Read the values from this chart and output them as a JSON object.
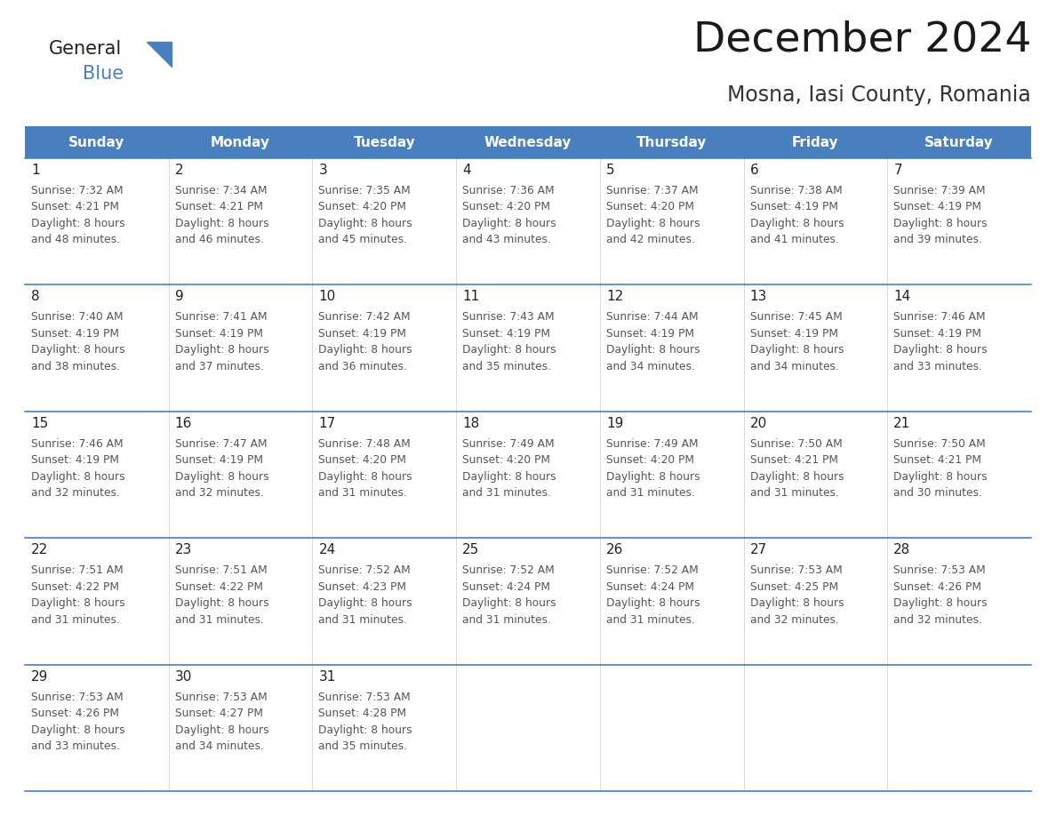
{
  "title": "December 2024",
  "subtitle": "Mosna, Iasi County, Romania",
  "header_bg": "#4a7fbf",
  "header_text_color": "#ffffff",
  "border_color": "#4a7fbf",
  "text_color": "#333333",
  "day_names": [
    "Sunday",
    "Monday",
    "Tuesday",
    "Wednesday",
    "Thursday",
    "Friday",
    "Saturday"
  ],
  "weeks": [
    [
      {
        "day": "1",
        "sunrise": "7:32 AM",
        "sunset": "4:21 PM",
        "daylight": "8 hours\nand 48 minutes."
      },
      {
        "day": "2",
        "sunrise": "7:34 AM",
        "sunset": "4:21 PM",
        "daylight": "8 hours\nand 46 minutes."
      },
      {
        "day": "3",
        "sunrise": "7:35 AM",
        "sunset": "4:20 PM",
        "daylight": "8 hours\nand 45 minutes."
      },
      {
        "day": "4",
        "sunrise": "7:36 AM",
        "sunset": "4:20 PM",
        "daylight": "8 hours\nand 43 minutes."
      },
      {
        "day": "5",
        "sunrise": "7:37 AM",
        "sunset": "4:20 PM",
        "daylight": "8 hours\nand 42 minutes."
      },
      {
        "day": "6",
        "sunrise": "7:38 AM",
        "sunset": "4:19 PM",
        "daylight": "8 hours\nand 41 minutes."
      },
      {
        "day": "7",
        "sunrise": "7:39 AM",
        "sunset": "4:19 PM",
        "daylight": "8 hours\nand 39 minutes."
      }
    ],
    [
      {
        "day": "8",
        "sunrise": "7:40 AM",
        "sunset": "4:19 PM",
        "daylight": "8 hours\nand 38 minutes."
      },
      {
        "day": "9",
        "sunrise": "7:41 AM",
        "sunset": "4:19 PM",
        "daylight": "8 hours\nand 37 minutes."
      },
      {
        "day": "10",
        "sunrise": "7:42 AM",
        "sunset": "4:19 PM",
        "daylight": "8 hours\nand 36 minutes."
      },
      {
        "day": "11",
        "sunrise": "7:43 AM",
        "sunset": "4:19 PM",
        "daylight": "8 hours\nand 35 minutes."
      },
      {
        "day": "12",
        "sunrise": "7:44 AM",
        "sunset": "4:19 PM",
        "daylight": "8 hours\nand 34 minutes."
      },
      {
        "day": "13",
        "sunrise": "7:45 AM",
        "sunset": "4:19 PM",
        "daylight": "8 hours\nand 34 minutes."
      },
      {
        "day": "14",
        "sunrise": "7:46 AM",
        "sunset": "4:19 PM",
        "daylight": "8 hours\nand 33 minutes."
      }
    ],
    [
      {
        "day": "15",
        "sunrise": "7:46 AM",
        "sunset": "4:19 PM",
        "daylight": "8 hours\nand 32 minutes."
      },
      {
        "day": "16",
        "sunrise": "7:47 AM",
        "sunset": "4:19 PM",
        "daylight": "8 hours\nand 32 minutes."
      },
      {
        "day": "17",
        "sunrise": "7:48 AM",
        "sunset": "4:20 PM",
        "daylight": "8 hours\nand 31 minutes."
      },
      {
        "day": "18",
        "sunrise": "7:49 AM",
        "sunset": "4:20 PM",
        "daylight": "8 hours\nand 31 minutes."
      },
      {
        "day": "19",
        "sunrise": "7:49 AM",
        "sunset": "4:20 PM",
        "daylight": "8 hours\nand 31 minutes."
      },
      {
        "day": "20",
        "sunrise": "7:50 AM",
        "sunset": "4:21 PM",
        "daylight": "8 hours\nand 31 minutes."
      },
      {
        "day": "21",
        "sunrise": "7:50 AM",
        "sunset": "4:21 PM",
        "daylight": "8 hours\nand 30 minutes."
      }
    ],
    [
      {
        "day": "22",
        "sunrise": "7:51 AM",
        "sunset": "4:22 PM",
        "daylight": "8 hours\nand 31 minutes."
      },
      {
        "day": "23",
        "sunrise": "7:51 AM",
        "sunset": "4:22 PM",
        "daylight": "8 hours\nand 31 minutes."
      },
      {
        "day": "24",
        "sunrise": "7:52 AM",
        "sunset": "4:23 PM",
        "daylight": "8 hours\nand 31 minutes."
      },
      {
        "day": "25",
        "sunrise": "7:52 AM",
        "sunset": "4:24 PM",
        "daylight": "8 hours\nand 31 minutes."
      },
      {
        "day": "26",
        "sunrise": "7:52 AM",
        "sunset": "4:24 PM",
        "daylight": "8 hours\nand 31 minutes."
      },
      {
        "day": "27",
        "sunrise": "7:53 AM",
        "sunset": "4:25 PM",
        "daylight": "8 hours\nand 32 minutes."
      },
      {
        "day": "28",
        "sunrise": "7:53 AM",
        "sunset": "4:26 PM",
        "daylight": "8 hours\nand 32 minutes."
      }
    ],
    [
      {
        "day": "29",
        "sunrise": "7:53 AM",
        "sunset": "4:26 PM",
        "daylight": "8 hours\nand 33 minutes."
      },
      {
        "day": "30",
        "sunrise": "7:53 AM",
        "sunset": "4:27 PM",
        "daylight": "8 hours\nand 34 minutes."
      },
      {
        "day": "31",
        "sunrise": "7:53 AM",
        "sunset": "4:28 PM",
        "daylight": "8 hours\nand 35 minutes."
      },
      null,
      null,
      null,
      null
    ]
  ],
  "fig_width": 11.88,
  "fig_height": 9.18,
  "dpi": 100
}
